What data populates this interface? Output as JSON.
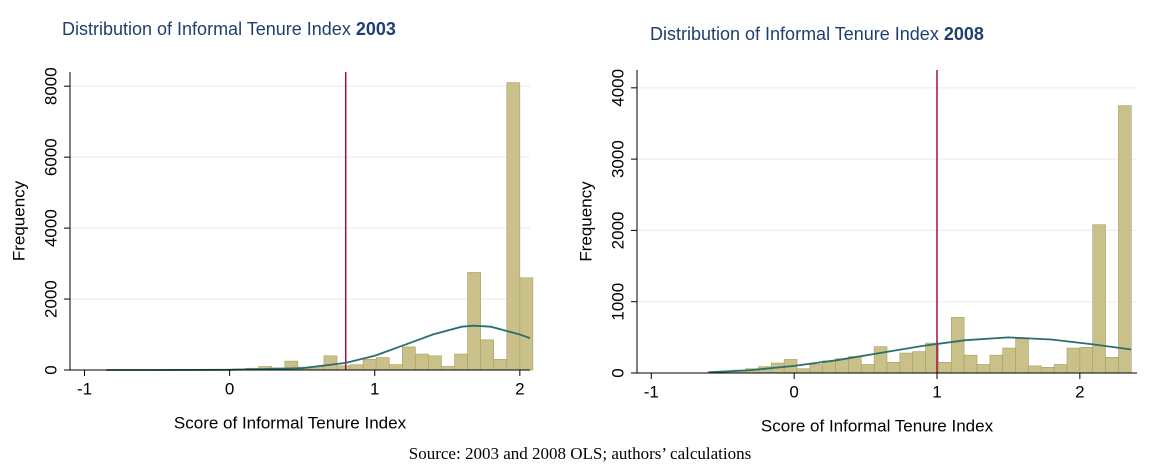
{
  "chart_data": [
    {
      "type": "histogram",
      "title": "Distribution of Informal Tenure Index",
      "title_bold": "2003",
      "x_label": "Score of Informal Tenure Index",
      "y_label": "Frequency",
      "bins": [
        -0.97,
        -0.88,
        -0.79,
        -0.7,
        -0.61,
        -0.52,
        -0.43,
        -0.34,
        -0.25,
        -0.16,
        -0.07,
        0.02,
        0.11,
        0.2,
        0.29,
        0.38,
        0.47,
        0.56,
        0.65,
        0.74,
        0.83,
        0.92,
        1.01,
        1.1,
        1.19,
        1.28,
        1.37,
        1.46,
        1.55,
        1.64,
        1.73,
        1.82,
        1.91,
        2.0,
        2.09
      ],
      "values": [
        5,
        5,
        5,
        5,
        5,
        10,
        10,
        10,
        15,
        20,
        20,
        30,
        50,
        100,
        60,
        250,
        80,
        100,
        400,
        120,
        150,
        300,
        350,
        150,
        650,
        450,
        400,
        100,
        450,
        2750,
        850,
        300,
        8100,
        2600
      ],
      "color": "#c9c08a",
      "edge_color": "#a89f66",
      "curve": {
        "x": [
          -0.85,
          -0.5,
          0,
          0.5,
          0.8,
          1.0,
          1.2,
          1.4,
          1.6,
          1.68,
          1.8,
          2.0,
          2.07
        ],
        "y": [
          0,
          0,
          5,
          50,
          200,
          400,
          700,
          1000,
          1220,
          1250,
          1220,
          1000,
          900
        ],
        "color": "#2c6e6e"
      },
      "reference_x": 0.8,
      "reference_color": "#a3123f",
      "xlim": [
        -1.1,
        2.07
      ],
      "ylim": [
        0,
        8400
      ],
      "xticks": [
        -1,
        0,
        1,
        2
      ],
      "yticks": [
        0,
        2000,
        4000,
        6000,
        8000
      ],
      "grid": true
    },
    {
      "type": "histogram",
      "title": "Distribution of Informal Tenure Index",
      "title_bold": "2008",
      "x_label": "Score of Informal Tenure Index",
      "y_label": "Frequency",
      "bins": [
        -0.61,
        -0.52,
        -0.43,
        -0.34,
        -0.25,
        -0.16,
        -0.07,
        0.02,
        0.11,
        0.2,
        0.29,
        0.38,
        0.47,
        0.56,
        0.65,
        0.74,
        0.83,
        0.92,
        1.01,
        1.1,
        1.19,
        1.28,
        1.37,
        1.46,
        1.55,
        1.64,
        1.73,
        1.82,
        1.91,
        2.0,
        2.09,
        2.18,
        2.27,
        2.36
      ],
      "values": [
        5,
        20,
        40,
        60,
        90,
        140,
        190,
        60,
        120,
        170,
        200,
        230,
        120,
        370,
        150,
        280,
        300,
        420,
        150,
        780,
        250,
        120,
        250,
        350,
        480,
        100,
        80,
        120,
        350,
        360,
        2080,
        220,
        3750
      ],
      "color": "#c9c08a",
      "edge_color": "#a89f66",
      "curve": {
        "x": [
          -0.6,
          -0.3,
          0,
          0.3,
          0.6,
          0.9,
          1.2,
          1.5,
          1.8,
          2.1,
          2.36
        ],
        "y": [
          10,
          40,
          100,
          180,
          280,
          380,
          460,
          500,
          470,
          400,
          330
        ],
        "color": "#2c6e6e"
      },
      "reference_x": 1,
      "reference_color": "#a3123f",
      "xlim": [
        -1.1,
        2.4
      ],
      "ylim": [
        0,
        4250
      ],
      "xticks": [
        -1,
        0,
        1,
        2
      ],
      "yticks": [
        0,
        1000,
        2000,
        3000,
        4000
      ],
      "grid": true
    }
  ],
  "source": "Source: 2003 and 2008 OLS; authors’ calculations"
}
